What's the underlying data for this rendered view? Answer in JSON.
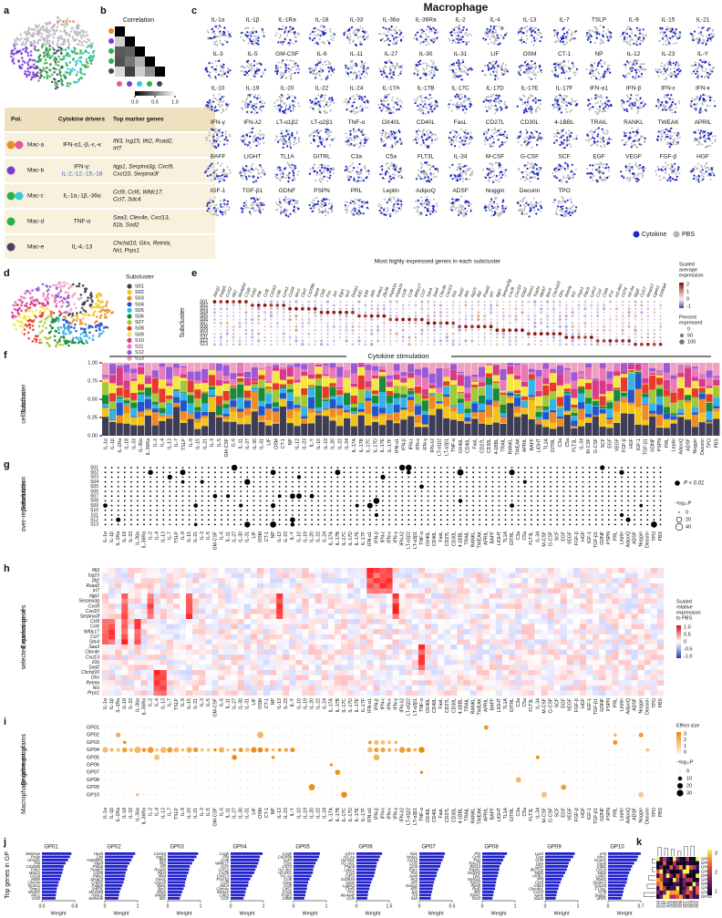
{
  "title": "Macrophage",
  "panel_labels": [
    "a",
    "b",
    "c",
    "d",
    "e",
    "f",
    "g",
    "h",
    "i",
    "j",
    "k"
  ],
  "table": {
    "header": [
      "Pol.",
      "Cytokine drivers",
      "Top marker genes"
    ],
    "rows": [
      {
        "pol": "Mac-a",
        "colors": [
          "#f08a24",
          "#e8589a"
        ],
        "drivers": [
          "IFN-α1,-β,-ε,-κ"
        ],
        "genes": [
          "Ifit3, Isg15, Ifit2, Rsad2,",
          "Irf7"
        ]
      },
      {
        "pol": "Mac-b",
        "colors": [
          "#7a3bd6"
        ],
        "drivers": [
          "IFN-γ;",
          "IL-2,-12,-15,-18"
        ],
        "genes": [
          "Iigp1, Serpina3g, Cxcl9,",
          "Cxcl10, Serpina3f"
        ]
      },
      {
        "pol": "Mac-c",
        "colors": [
          "#2bb24c",
          "#35c8e0"
        ],
        "drivers": [
          "IL-1α,-1β,-36α"
        ],
        "genes": [
          "Ccl9, Ccl6, Wfdc17,",
          "Ccl7, Sdc4"
        ]
      },
      {
        "pol": "Mac-d",
        "colors": [
          "#2bb24c"
        ],
        "drivers": [
          "TNF-α"
        ],
        "genes": [
          "Saa3, Clec4e, Cxcl13,",
          "Il1b, Sod2"
        ]
      },
      {
        "pol": "Mac-e",
        "colors": [
          "#4a3f66"
        ],
        "drivers": [
          "IL-4,-13"
        ],
        "genes": [
          "Chchd10, Glrx, Retnla,",
          "Ncl, Prps1"
        ]
      }
    ]
  },
  "correlation": {
    "title": "Correlation",
    "ticks": [
      {
        "value": 0,
        "label": "0.0"
      },
      0.5,
      {
        "value": 1,
        "label": "1.0"
      }
    ]
  },
  "cytokines": [
    "IL-1α",
    "IL-1β",
    "IL-1Ra",
    "IL-18",
    "IL-33",
    "IL-36α",
    "IL-36Ra",
    "IL-2",
    "IL-4",
    "IL-13",
    "IL-7",
    "TSLP",
    "IL-9",
    "IL-15",
    "IL-21",
    "IL-3",
    "IL-5",
    "GM-CSF",
    "IL-6",
    "IL-11",
    "IL-27",
    "IL-30",
    "IL-31",
    "LIF",
    "OSM",
    "CT-1",
    "NP",
    "IL-12",
    "IL-23",
    "IL-Y",
    "IL-10",
    "IL-19",
    "IL-20",
    "IL-22",
    "IL-24",
    "IL-17A",
    "IL-17B",
    "IL-17C",
    "IL-17D",
    "IL-17E",
    "IL-17F",
    "IFN-α1",
    "IFN-β",
    "IFN-ε",
    "IFN-κ",
    "IFN-γ",
    "IFN-λ2",
    "LT-α1β2",
    "LT-α2β1",
    "TNF-α",
    "OX40L",
    "CD40L",
    "FasL",
    "CD27L",
    "CD30L",
    "4-1BBL",
    "TRAIL",
    "RANKL",
    "TWEAK",
    "APRIL",
    "BAFF",
    "LIGHT",
    "TL1A",
    "GITRL",
    "C3a",
    "C5a",
    "FLT3L",
    "IL-34",
    "M-CSF",
    "G-CSF",
    "SCF",
    "EGF",
    "VEGF",
    "FGF-β",
    "HGF",
    "IGF-1",
    "TGF-β1",
    "GDNF",
    "PSPN",
    "PRL",
    "Leptin",
    "AdipoQ",
    "ADSF",
    "Noggin",
    "Decorin",
    "TPO"
  ],
  "control": "PBS",
  "c_legend": [
    "Cytokine",
    "PBS"
  ],
  "subcluster_legend_title": "Subcluster",
  "subclusters": [
    "S01",
    "S02",
    "S03",
    "S04",
    "S05",
    "S06",
    "S07",
    "S08",
    "S09",
    "S10",
    "S11",
    "S12",
    "S13"
  ],
  "subcluster_colors": [
    "#3d3d55",
    "#f2c318",
    "#f08a24",
    "#2255cc",
    "#35b2e8",
    "#1a8a3a",
    "#a0c838",
    "#e83a2a",
    "#f5e640",
    "#d83a8a",
    "#e87ab8",
    "#9b59d6",
    "#f0a0c0"
  ],
  "e": {
    "title": "Most highly expressed genes in each subcluster",
    "ylabel": "Subcluster",
    "genes": [
      "Abcg1",
      "Fabp5",
      "Ccl12",
      "Mt2",
      "Ms4a6d",
      "C1qb",
      "Folr2",
      "Pf4",
      "Ccl8",
      "Cd163",
      "C4b",
      "Lyve1",
      "Ccl24",
      "Mrc1",
      "Cbr2",
      "Cd209b",
      "Apoe",
      "Ctsb",
      "Fos",
      "Jun",
      "Egr1",
      "Ier2",
      "Dusp1",
      "Klf2",
      "Klf4",
      "Atf3",
      "Nr4a1",
      "Zfp36",
      "Hspa1a",
      "Hspa1b",
      "Ccl9",
      "Ccl6",
      "Wfdc17",
      "Ccl7",
      "Sdc4",
      "Saa3",
      "Clec4e",
      "Cxcl13",
      "Il1b",
      "Sod2",
      "Ifit3",
      "Isg15",
      "Ifit2",
      "Rsad2",
      "Irf7",
      "Iigp1",
      "Serpina3g",
      "Cxcl9",
      "Cxcl10",
      "Gbp2",
      "Stmn1",
      "Top2a",
      "Mki67",
      "Birc5",
      "Chchd10",
      "Glrx",
      "Retnla",
      "Ncl",
      "Prps1",
      "Plac8",
      "Ly6c2",
      "Ccr2",
      "Chil3",
      "Fn1",
      "H2-Ab1",
      "Cd74",
      "H2-Aa",
      "Mgl2",
      "Ccl17",
      "Mmp12",
      "Lgals1",
      "S100a4"
    ],
    "color_legend": [
      "Scaled",
      "average",
      "expression"
    ],
    "color_ticks": [
      2,
      1,
      0,
      -1
    ],
    "size_legend": [
      "Percent",
      "expressed"
    ],
    "size_ticks": [
      0,
      50,
      100
    ]
  },
  "f": {
    "title": "Cytokine stimulation",
    "ylabel": [
      "Subcluster",
      "cell fraction"
    ],
    "yticks": [
      {
        "value": 0,
        "label": "0.00"
      },
      {
        "value": 0.25,
        "label": "0.25"
      },
      {
        "value": 0.5,
        "label": "0.50"
      },
      {
        "value": 0.75,
        "label": "0.75"
      },
      {
        "value": 1,
        "label": "1.00"
      }
    ]
  },
  "g": {
    "ylabel": [
      "Subcluster",
      "over-representation"
    ],
    "sig_legend": "P < 0.01",
    "size_title": "−log₁₀P",
    "size_ticks": [
      0,
      20,
      40
    ]
  },
  "h": {
    "ylabel": [
      "Expression of",
      "selected marker genes"
    ],
    "genes": [
      "Ifit3",
      "Isg15",
      "Ifit2",
      "Rsad2",
      "Irf7",
      "Iigp1",
      "Serpina3g",
      "Cxcl9",
      "Cxcl10",
      "Serpina3f",
      "Ccl9",
      "Ccl6",
      "Wfdc17",
      "Ccl7",
      "Sdc4",
      "Saa3",
      "Clec4e",
      "Cxcl13",
      "Il1b",
      "Sod2",
      "Chchd10",
      "Glrx",
      "Retnla",
      "Ncl",
      "Prps1"
    ],
    "legend": [
      "Scaled",
      "relative",
      "expression",
      "to PBS"
    ],
    "ticks": [
      {
        "value": 1,
        "label": "1.0"
      },
      0.5,
      0,
      -0.5,
      {
        "value": -1,
        "label": "-1.0"
      }
    ]
  },
  "i": {
    "ylabel": [
      "Enrichment of",
      "Macrophage gene programs"
    ],
    "programs": [
      "GP01",
      "GP02",
      "GP03",
      "GP04",
      "GP05",
      "GP06",
      "GP07",
      "GP08",
      "GP09",
      "GP10"
    ],
    "effect_title": "Effect size",
    "effect_ticks": [
      3,
      2,
      1,
      0
    ],
    "size_title": "−log₁₀P",
    "size_ticks": [
      0,
      10,
      20,
      30
    ]
  },
  "j": {
    "ylabel": "Top genes in GP",
    "xlabel": "Weight",
    "charts": [
      {
        "name": "GP01",
        "ticks": [
          {
            "value": 0,
            "label": "0.0"
          },
          0.8
        ],
        "genes": [
          "Selenop",
          "Psap",
          "Hmox1",
          "Pf4",
          "Cd209b",
          "Folr2",
          "Marco",
          "Ccl24",
          "Mafb",
          "Clec4n",
          "Vcam1",
          "Timp2",
          "Ms4a7",
          "Mrc1",
          "Ctsb"
        ]
      },
      {
        "name": "GP02",
        "ticks": [
          0,
          1
        ],
        "genes": [
          "Hexb",
          "Ctsl",
          "Hsp90b1",
          "Manf",
          "Pdia6",
          "Txndc5",
          "Cd36",
          "Pdia3",
          "Dnajc3",
          "Creld2",
          "Fabp5",
          "Sdf2l1",
          "Ms4a6d",
          "Hyou1",
          "Selenok"
        ]
      },
      {
        "name": "GP03",
        "ticks": [
          0,
          1
        ],
        "genes": [
          "Cxcl10",
          "Isg15",
          "Ifit3",
          "Ifit2",
          "Irf7",
          "Rsad2",
          "Rtp4",
          "Ifi44",
          "Oasl1",
          "Usp18",
          "Stat1",
          "Bst2",
          "Zbp1",
          "Mndal",
          "Ifit1"
        ]
      },
      {
        "name": "GP04",
        "ticks": [
          0,
          1
        ],
        "genes": [
          "C1qb",
          "Pf4",
          "Ccl8",
          "Wfdc17",
          "Ccl7",
          "Ccl12",
          "Cxcl9",
          "Cxcl13",
          "Fcer1g",
          "Ccl9",
          "Sdc4",
          "Clec4e",
          "Ms4a7",
          "Cd63",
          "Ccl2"
        ]
      },
      {
        "name": "GP05",
        "ticks": [
          0,
          1
        ],
        "genes": [
          "C1qb",
          "Cd209b",
          "Lyz2",
          "Ctss",
          "Cd74",
          "H2-Ab1",
          "H2-Eb1",
          "H2-Aa",
          "Ccl6",
          "Apoe",
          "Ccl9",
          "Cd52",
          "C1qa",
          "Fcgr3",
          "Cd68"
        ]
      },
      {
        "name": "GP06",
        "ticks": [
          0,
          1.5
        ],
        "genes": [
          "Cd74",
          "H2-Aa",
          "H2-Eb1",
          "H2-Ab1",
          "Plac8",
          "Ly6c2",
          "Ccr2",
          "Cd52",
          "S100a4",
          "Apoe",
          "Lgals3",
          "Chil3",
          "Fn1",
          "Ms4a4c",
          "Ccl5"
        ]
      },
      {
        "name": "GP07",
        "ticks": [
          0,
          0.6
        ],
        "genes": [
          "Il4i1",
          "Nr4a1",
          "Ccl12",
          "Ccl3",
          "Ccl4",
          "Egr1",
          "Fos",
          "Junb",
          "Ier3",
          "Atf3",
          "Dusp1",
          "Klf2",
          "Jun",
          "Tnf",
          "Il1b"
        ]
      },
      {
        "name": "GP08",
        "ticks": [
          0,
          1
        ],
        "genes": [
          "Pf4",
          "Ccl6",
          "Fau",
          "Rps19",
          "Rpl13",
          "Rack1",
          "Eef1b2",
          "Tpt1",
          "Eef1a1",
          "Rpl32",
          "Rps8",
          "Rpl3",
          "Atf1",
          "Rpl41",
          "Ost4"
        ]
      },
      {
        "name": "GP09",
        "ticks": [
          0,
          1
        ],
        "genes": [
          "Lyz2",
          "Gsn",
          "Ccl8",
          "Lipa",
          "Ctss",
          "Ifi27l2a",
          "Mgl2",
          "Hcar2",
          "Pf4",
          "Ctsd",
          "Cd63",
          "Clec4b1",
          "Ccl24",
          "Apoe",
          "Saa3"
        ]
      },
      {
        "name": "GP10",
        "ticks": [
          0,
          0.7
        ],
        "genes": [
          "Xist",
          "Mrc1",
          "Vcam1",
          "Gas6",
          "Cd81",
          "Ccl24",
          "Mgl2",
          "Lyve1",
          "Stab1",
          "Serinc3",
          "Cd163",
          "F13a1",
          "Ccl9",
          "Sepp1",
          "Uhrf1"
        ]
      }
    ]
  },
  "k": {
    "rows": [
      "GP04",
      "GP07",
      "GP02",
      "GP01",
      "GP06",
      "GP05",
      "GP09",
      "GP03",
      "GP08",
      "GP10"
    ],
    "cols": [
      "S13",
      "S12",
      "S10",
      "S11",
      "S09",
      "S06",
      "S05",
      "S08",
      "S07",
      "S02",
      "S04",
      "S03",
      "S01"
    ],
    "ticks": [
      1,
      2,
      3
    ]
  }
}
